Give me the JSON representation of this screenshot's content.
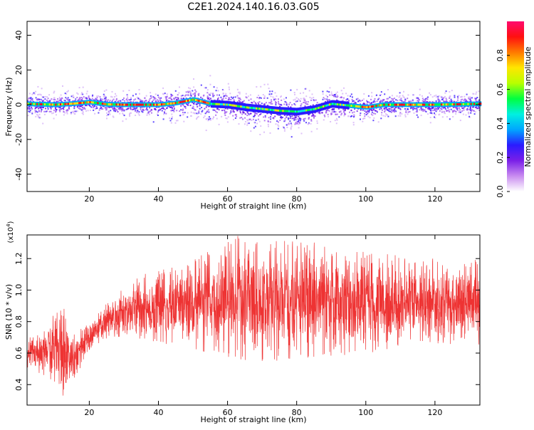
{
  "title": "C2E1.2024.140.16.03.G05",
  "chart_data": [
    {
      "type": "heatmap",
      "xlabel": "Height of straight line (km)",
      "ylabel": "Frequency (Hz)",
      "xlim": [
        2,
        133
      ],
      "ylim": [
        -50,
        48
      ],
      "x_ticks": [
        20,
        40,
        60,
        80,
        100,
        120
      ],
      "y_ticks": [
        40,
        20,
        0,
        -20,
        -40
      ],
      "colorbar": {
        "label": "Normalized spectral amplitude",
        "range": [
          0,
          1
        ],
        "ticks": [
          "0.0",
          "0.2",
          "0.4",
          "0.6",
          "0.8"
        ],
        "colors": [
          "#ffffff",
          "#c98cf0",
          "#7a1fe8",
          "#2a1bff",
          "#00a6ff",
          "#00f0e0",
          "#00ff40",
          "#b8ff00",
          "#ffe600",
          "#ff7a00",
          "#ff1010",
          "#ff0a6e"
        ]
      },
      "ridge_center_hz": [
        [
          2,
          0.5
        ],
        [
          10,
          0.0
        ],
        [
          15,
          0.6
        ],
        [
          20,
          1.5
        ],
        [
          25,
          0.2
        ],
        [
          30,
          0.0
        ],
        [
          40,
          0.0
        ],
        [
          45,
          1.0
        ],
        [
          50,
          3.0
        ],
        [
          55,
          0.5
        ],
        [
          60,
          0.0
        ],
        [
          65,
          -1.5
        ],
        [
          70,
          -2.5
        ],
        [
          75,
          -3.5
        ],
        [
          80,
          -4.0
        ],
        [
          85,
          -2.5
        ],
        [
          90,
          0.5
        ],
        [
          95,
          -0.5
        ],
        [
          100,
          -1.5
        ],
        [
          105,
          0.0
        ],
        [
          110,
          0.0
        ],
        [
          120,
          0.0
        ],
        [
          133,
          0.5
        ]
      ]
    },
    {
      "type": "line",
      "xlabel": "Height of straight line (km)",
      "ylabel": "SNR (10 * v/v)",
      "y_multiplier": "(x10^4)",
      "xlim": [
        2,
        133
      ],
      "ylim": [
        0.27,
        1.35
      ],
      "x_ticks": [
        20,
        40,
        60,
        80,
        100,
        120
      ],
      "y_ticks": [
        "1.2",
        "1.0",
        "0.8",
        "0.6",
        "0.4"
      ],
      "series": [
        {
          "color": "#ee3333",
          "envelope": [
            {
              "x": 2,
              "low": 0.5,
              "high": 0.7
            },
            {
              "x": 8,
              "low": 0.45,
              "high": 0.8
            },
            {
              "x": 12,
              "low": 0.3,
              "high": 0.95
            },
            {
              "x": 15,
              "low": 0.4,
              "high": 0.72
            },
            {
              "x": 20,
              "low": 0.6,
              "high": 0.8
            },
            {
              "x": 26,
              "low": 0.7,
              "high": 0.95
            },
            {
              "x": 35,
              "low": 0.68,
              "high": 1.1
            },
            {
              "x": 45,
              "low": 0.65,
              "high": 1.15
            },
            {
              "x": 55,
              "low": 0.6,
              "high": 1.25
            },
            {
              "x": 62,
              "low": 0.55,
              "high": 1.35
            },
            {
              "x": 70,
              "low": 0.55,
              "high": 1.3
            },
            {
              "x": 80,
              "low": 0.55,
              "high": 1.33
            },
            {
              "x": 90,
              "low": 0.58,
              "high": 1.28
            },
            {
              "x": 100,
              "low": 0.6,
              "high": 1.25
            },
            {
              "x": 110,
              "low": 0.62,
              "high": 1.22
            },
            {
              "x": 120,
              "low": 0.65,
              "high": 1.2
            },
            {
              "x": 133,
              "low": 0.65,
              "high": 1.2
            }
          ]
        }
      ]
    }
  ]
}
